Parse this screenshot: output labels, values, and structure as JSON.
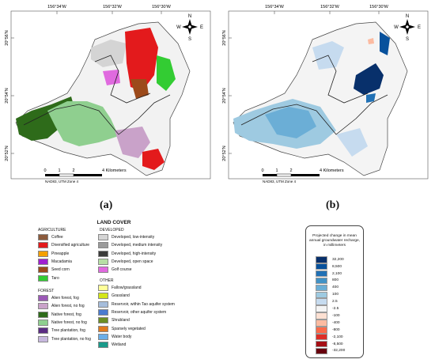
{
  "panel_a": {
    "caption": "(a)",
    "lon_labels": [
      "156°34'W",
      "156°32'W",
      "156°30'W"
    ],
    "lat_labels": [
      "20°56'N",
      "20°54'N",
      "20°52'N"
    ],
    "compass": {
      "n": "N",
      "s": "S",
      "e": "E",
      "w": "W"
    },
    "scale_ticks": [
      "0",
      "1",
      "2",
      "4 Kilometers"
    ],
    "projection": "NAD83, UTM Zone 4"
  },
  "panel_b": {
    "caption": "(b)",
    "lon_labels": [
      "156°34'W",
      "156°32'W",
      "156°30'W"
    ],
    "lat_labels": [
      "20°56'N",
      "20°54'N",
      "20°52'N"
    ],
    "compass": {
      "n": "N",
      "s": "S",
      "e": "E",
      "w": "W"
    },
    "scale_ticks": [
      "0",
      "1",
      "2",
      "4 Kilometers"
    ],
    "projection": "NAD83, UTM Zone 4"
  },
  "land_cover_legend": {
    "title": "LAND COVER",
    "groups": [
      {
        "title": "AGRICULTURE",
        "items": [
          {
            "label": "Coffee",
            "color": "#8b5a3c"
          },
          {
            "label": "Diversified agriculture",
            "color": "#e31a1c"
          },
          {
            "label": "Pineapple",
            "color": "#f4a000"
          },
          {
            "label": "Macadamia",
            "color": "#a020d0"
          },
          {
            "label": "Seed corn",
            "color": "#9c4a1a"
          },
          {
            "label": "Taro",
            "color": "#33cc33"
          }
        ]
      },
      {
        "title": "FOREST",
        "items": [
          {
            "label": "Alien forest, fog",
            "color": "#9b59b6"
          },
          {
            "label": "Alien forest, no fog",
            "color": "#c9a2c9"
          },
          {
            "label": "Native forest, fog",
            "color": "#2e6b1a"
          },
          {
            "label": "Native forest, no fog",
            "color": "#8fcf8f"
          },
          {
            "label": "Tree plantation, fog",
            "color": "#5b2c83"
          },
          {
            "label": "Tree plantation, no fog",
            "color": "#c7b8de"
          }
        ]
      },
      {
        "title": "DEVELOPED",
        "items": [
          {
            "label": "Developed, low-intensity",
            "color": "#d4d4d4"
          },
          {
            "label": "Developed, medium intensity",
            "color": "#9a9a9a"
          },
          {
            "label": "Developed, high-intensity",
            "color": "#3a3a3a"
          },
          {
            "label": "Developed, open space",
            "color": "#b6e0a4"
          },
          {
            "label": "Golf course",
            "color": "#e06adf"
          }
        ]
      },
      {
        "title": "OTHER",
        "items": [
          {
            "label": "Fallow/grassland",
            "color": "#ffff99"
          },
          {
            "label": "Grassland",
            "color": "#d4e61a"
          },
          {
            "label": "Reservoir, within Tao aquifer system",
            "color": "#a6bddb"
          },
          {
            "label": "Reservoir, other aquifer system",
            "color": "#4a7bd0"
          },
          {
            "label": "Shrubland",
            "color": "#6b8e23"
          },
          {
            "label": "Sparsely vegetated",
            "color": "#e07a1f"
          },
          {
            "label": "Water body",
            "color": "#6aaee8"
          },
          {
            "label": "Wetland",
            "color": "#1a9a8a"
          }
        ]
      }
    ]
  },
  "recharge_legend": {
    "title": "Projected change in mean annual groundwater recharge, in millimeters",
    "classes": [
      {
        "label": "32,200",
        "color": "#08306b"
      },
      {
        "label": "8,500",
        "color": "#08519c"
      },
      {
        "label": "2,100",
        "color": "#2171b5"
      },
      {
        "label": "800",
        "color": "#4292c6"
      },
      {
        "label": "400",
        "color": "#6baed6"
      },
      {
        "label": "100",
        "color": "#9ecae1"
      },
      {
        "label": "2.5",
        "color": "#c6dbef"
      },
      {
        "label": "-2.5",
        "color": "#f4f4f4"
      },
      {
        "label": "-100",
        "color": "#fde0d2"
      },
      {
        "label": "-400",
        "color": "#fcbba1"
      },
      {
        "label": "-800",
        "color": "#fb6a4a"
      },
      {
        "label": "-2,100",
        "color": "#de2d26"
      },
      {
        "label": "-8,500",
        "color": "#a50f15"
      },
      {
        "label": "-32,200",
        "color": "#67000d"
      }
    ]
  }
}
